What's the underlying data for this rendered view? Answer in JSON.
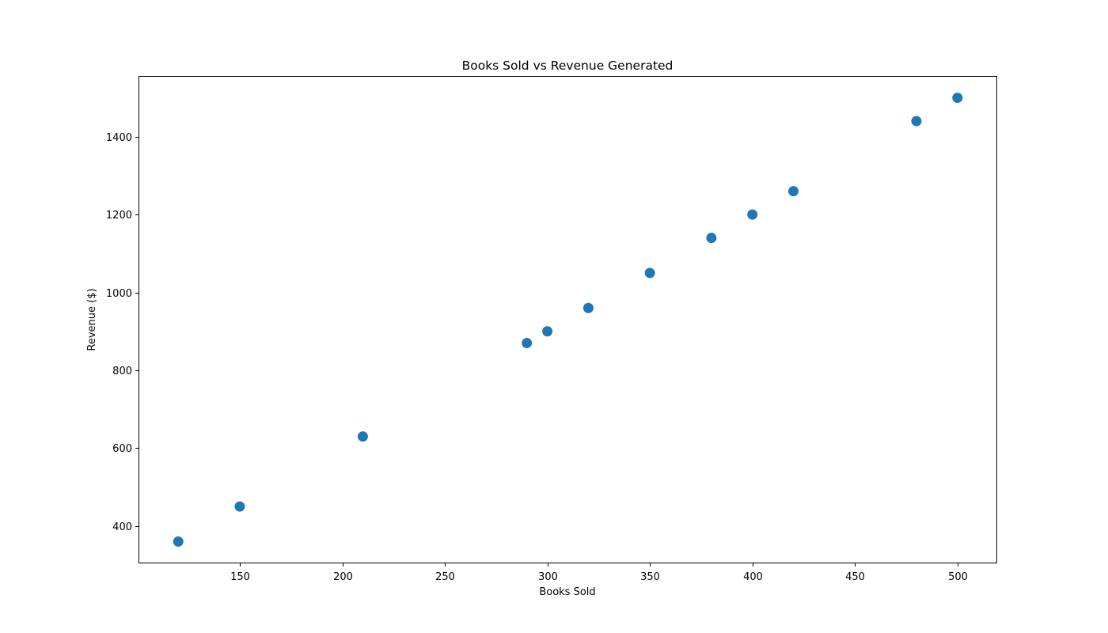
{
  "chart_data": {
    "type": "scatter",
    "title": "Books Sold vs Revenue Generated",
    "xlabel": "Books Sold",
    "ylabel": "Revenue ($)",
    "xlim": [
      101,
      519
    ],
    "ylim": [
      306,
      1554
    ],
    "xticks": [
      150,
      200,
      250,
      300,
      350,
      400,
      450,
      500
    ],
    "yticks": [
      400,
      600,
      800,
      1000,
      1200,
      1400
    ],
    "grid": false,
    "marker_color": "#1f77b4",
    "points": [
      {
        "x": 120,
        "y": 360
      },
      {
        "x": 150,
        "y": 450
      },
      {
        "x": 210,
        "y": 630
      },
      {
        "x": 290,
        "y": 870
      },
      {
        "x": 300,
        "y": 900
      },
      {
        "x": 320,
        "y": 960
      },
      {
        "x": 350,
        "y": 1050
      },
      {
        "x": 380,
        "y": 1140
      },
      {
        "x": 400,
        "y": 1200
      },
      {
        "x": 420,
        "y": 1260
      },
      {
        "x": 480,
        "y": 1440
      },
      {
        "x": 500,
        "y": 1500
      }
    ]
  }
}
